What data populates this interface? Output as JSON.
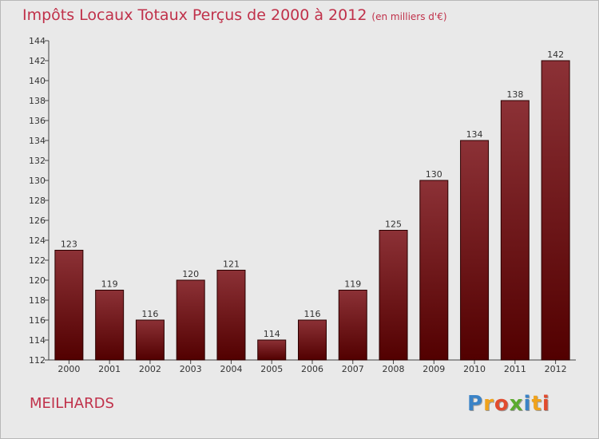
{
  "title": "Impôts Locaux Totaux Perçus de 2000 à 2012",
  "unit_note": "(en milliers d'€)",
  "place": "MEILHARDS",
  "logo": {
    "letters": [
      "P",
      "r",
      "o",
      "x",
      "i",
      "t",
      "i"
    ],
    "colors": [
      "#3a83c7",
      "#f0a21b",
      "#e14b2e",
      "#5cab2f",
      "#3a83c7",
      "#f0a21b",
      "#e14b2e"
    ]
  },
  "colors": {
    "bar_top": "#8c3136",
    "bar_bottom": "#520000",
    "text_accent": "#c0314a"
  },
  "chart_data": {
    "type": "bar",
    "title": "Impôts Locaux Totaux Perçus de 2000 à 2012",
    "categories": [
      "2000",
      "2001",
      "2002",
      "2003",
      "2004",
      "2005",
      "2006",
      "2007",
      "2008",
      "2009",
      "2010",
      "2011",
      "2012"
    ],
    "values": [
      123,
      119,
      116,
      120,
      121,
      114,
      116,
      119,
      125,
      130,
      134,
      138,
      142
    ],
    "yticks": [
      112,
      114,
      116,
      118,
      120,
      122,
      124,
      126,
      128,
      130,
      132,
      134,
      136,
      138,
      140,
      142,
      144
    ],
    "ylim": [
      112,
      144
    ],
    "grid": false
  }
}
